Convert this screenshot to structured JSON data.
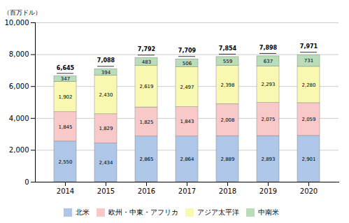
{
  "chart_data": {
    "type": "bar",
    "stacked": true,
    "ylabel": "（百万ドル）",
    "categories": [
      "2014",
      "2015",
      "2016",
      "2017",
      "2018",
      "2019",
      "2020"
    ],
    "series": [
      {
        "name": "北米",
        "color": "#aec6e8",
        "values": [
          2550,
          2434,
          2865,
          2864,
          2889,
          2893,
          2901
        ],
        "value_labels": [
          "2,550",
          "2,434",
          "2,865",
          "2,864",
          "2,889",
          "2,893",
          "2,901"
        ]
      },
      {
        "name": "欧州・中東・アフリカ",
        "color": "#f9c8c8",
        "values": [
          1845,
          1829,
          1825,
          1843,
          2008,
          2075,
          2059
        ],
        "value_labels": [
          "1,845",
          "1,829",
          "1,825",
          "1,843",
          "2,008",
          "2,075",
          "2,059"
        ]
      },
      {
        "name": "アジア太平洋",
        "color": "#f8f8b0",
        "values": [
          1902,
          2430,
          2619,
          2497,
          2398,
          2293,
          2280
        ],
        "value_labels": [
          "1,902",
          "2,430",
          "2,619",
          "2,497",
          "2,398",
          "2,293",
          "2,280"
        ]
      },
      {
        "name": "中南米",
        "color": "#b8ddb8",
        "values": [
          347,
          394,
          483,
          506,
          559,
          637,
          731
        ],
        "value_labels": [
          "347",
          "394",
          "483",
          "506",
          "559",
          "637",
          "731"
        ]
      }
    ],
    "totals": [
      6645,
      7088,
      7792,
      7709,
      7854,
      7898,
      7971
    ],
    "total_labels": [
      "6,645",
      "7,088",
      "7,792",
      "7,709",
      "7,854",
      "7,898",
      "7,971"
    ],
    "data_labels": true,
    "ylim": [
      0,
      10000
    ],
    "yticks": [
      0,
      {
        "value": 2000,
        "label": "2,000"
      },
      {
        "value": 4000,
        "label": "4,000"
      },
      {
        "value": 6000,
        "label": "6,000"
      },
      {
        "value": 8000,
        "label": "8,000"
      },
      {
        "value": 10000,
        "label": "10,000"
      }
    ],
    "grid": true,
    "legend": "bottom"
  }
}
